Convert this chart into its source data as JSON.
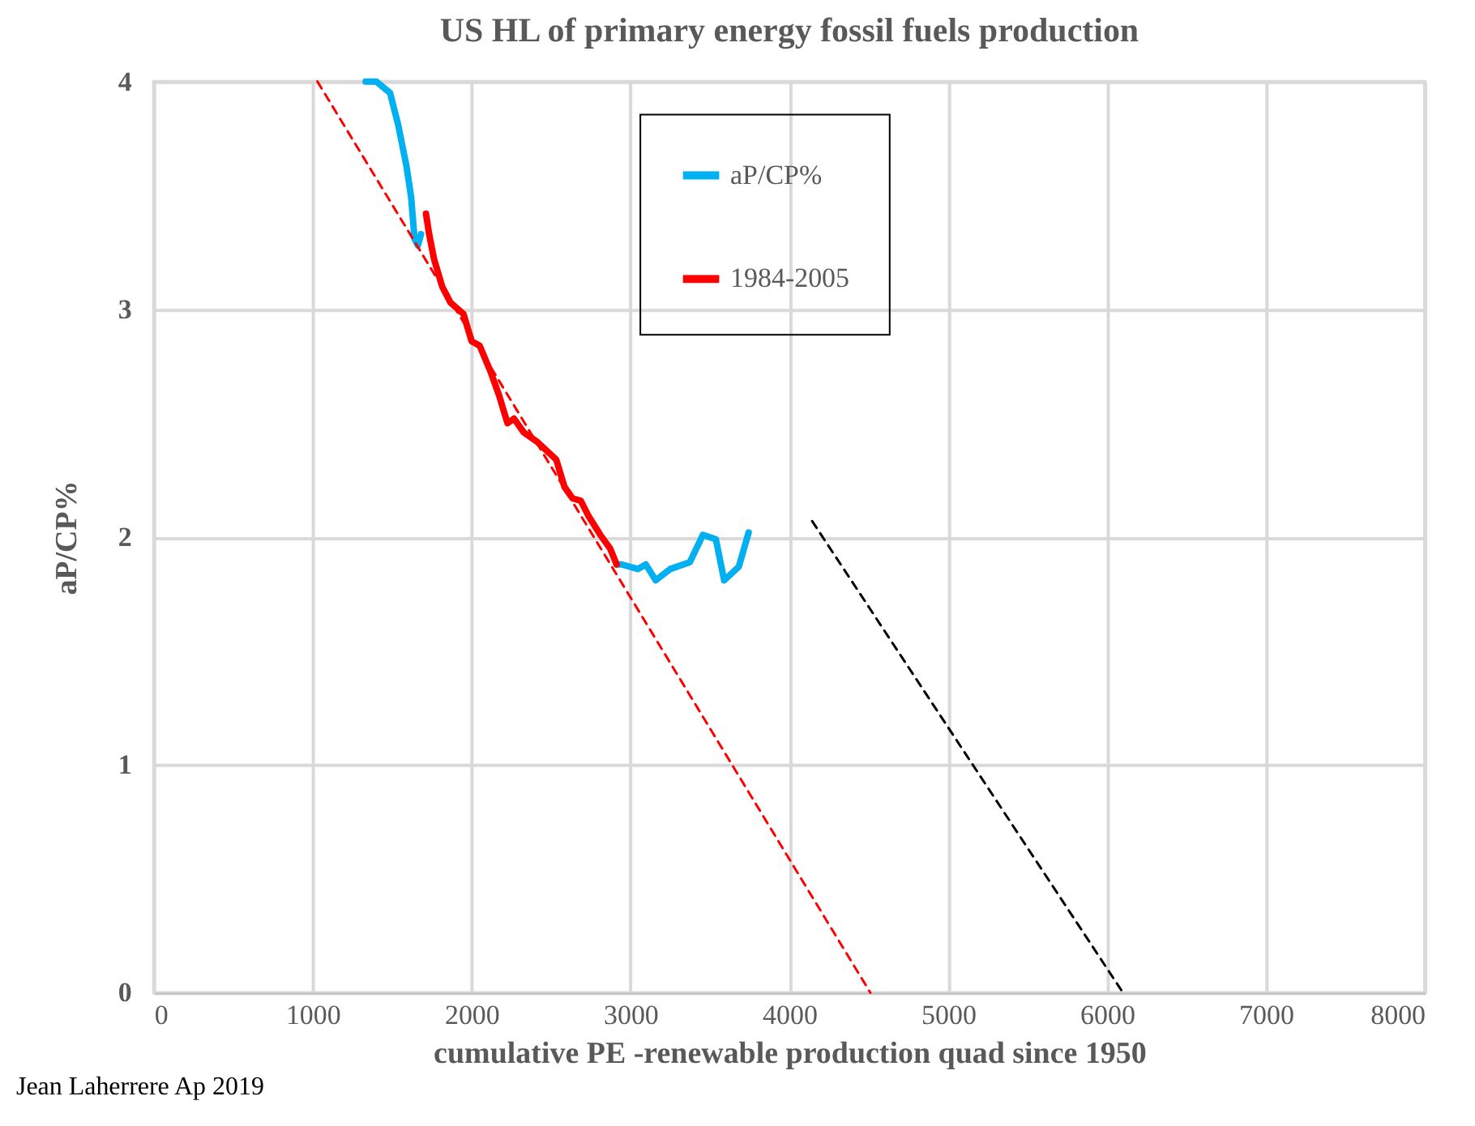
{
  "chart_data": {
    "type": "line",
    "title": "US HL of primary energy fossil fuels production",
    "xlabel": "cumulative PE -renewable production quad since 1950",
    "ylabel": "aP/CP%",
    "xlim": [
      0,
      8000
    ],
    "xticks": [
      0,
      1000,
      2000,
      3000,
      4000,
      5000,
      6000,
      7000,
      8000
    ],
    "ylim": [
      0,
      4
    ],
    "yticks": [
      0,
      1,
      2,
      3,
      4
    ],
    "grid": true,
    "legend": "top",
    "line_style": "solid",
    "marker": "none",
    "series": [
      {
        "name": "aP/CP%",
        "color": "#00b0f0",
        "x": [
          1333,
          1400,
          1487,
          1538,
          1590,
          1620,
          1641,
          1662,
          1682,
          1713,
          1733,
          1764,
          1815,
          1867,
          1949,
          2000,
          2051,
          2123,
          2174,
          2226,
          2267,
          2328,
          2410,
          2533,
          2585,
          2636,
          2687,
          2738,
          2810,
          2872,
          2913,
          2944,
          3046,
          3097,
          3159,
          3251,
          3374,
          3456,
          3538,
          3590,
          3682,
          3744
        ],
        "values": [
          4.0,
          4.0,
          3.95,
          3.81,
          3.63,
          3.49,
          3.31,
          3.28,
          3.33,
          null,
          null,
          null,
          null,
          null,
          null,
          null,
          null,
          null,
          null,
          null,
          null,
          null,
          null,
          null,
          null,
          null,
          null,
          null,
          null,
          null,
          1.88,
          1.88,
          1.86,
          1.88,
          1.81,
          1.86,
          1.89,
          2.01,
          1.99,
          1.81,
          1.87,
          2.02
        ]
      },
      {
        "name": "1984-2005",
        "color": "#ff0000",
        "x": [
          1713,
          1733,
          1764,
          1815,
          1867,
          1949,
          2000,
          2051,
          2123,
          2174,
          2226,
          2267,
          2328,
          2410,
          2533,
          2585,
          2636,
          2687,
          2738,
          2810,
          2872,
          2913
        ],
        "values": [
          3.42,
          3.33,
          3.22,
          3.1,
          3.03,
          2.98,
          2.86,
          2.84,
          2.72,
          2.62,
          2.5,
          2.52,
          2.46,
          2.42,
          2.34,
          2.22,
          2.17,
          2.16,
          2.09,
          2.01,
          1.95,
          1.88
        ]
      },
      {
        "color": "#ff0000",
        "line_style": "dashed",
        "x": [
          1030,
          4510
        ],
        "values": [
          4.0,
          0.0
        ]
      },
      {
        "color": "#000000",
        "line_style": "dashed",
        "x": [
          4144,
          6100
        ],
        "values": [
          2.07,
          0.0
        ]
      }
    ],
    "annotations": [
      "Jean Laherrere Ap 2019"
    ]
  }
}
